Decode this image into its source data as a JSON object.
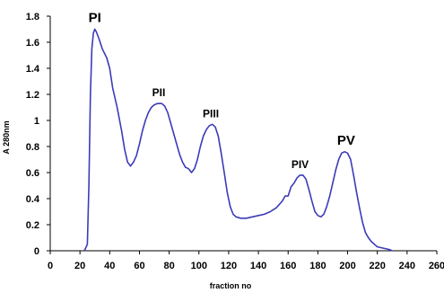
{
  "chart_data": {
    "type": "line",
    "xlabel": "fraction no",
    "ylabel": "A 280nm",
    "xlim": [
      0,
      260
    ],
    "ylim": [
      0,
      1.8
    ],
    "x_ticks": [
      0,
      20,
      40,
      60,
      80,
      100,
      120,
      140,
      160,
      180,
      200,
      220,
      240,
      260
    ],
    "y_ticks": [
      0,
      0.2,
      0.4,
      0.6,
      0.8,
      1,
      1.2,
      1.4,
      1.6,
      1.8
    ],
    "grid": false,
    "legend": "none",
    "series": [
      {
        "color": "#3b3bb8",
        "x": [
          23,
          25,
          26,
          27,
          28,
          29,
          30,
          31,
          33,
          35,
          38,
          40,
          42,
          45,
          48,
          50,
          52,
          54,
          56,
          58,
          60,
          62,
          64,
          66,
          68,
          70,
          72,
          75,
          77,
          79,
          81,
          83,
          85,
          87,
          89,
          91,
          93,
          95,
          97,
          99,
          101,
          103,
          105,
          107,
          109,
          111,
          113,
          115,
          117,
          119,
          121,
          123,
          125,
          128,
          132,
          136,
          140,
          144,
          148,
          152,
          156,
          158,
          160,
          162,
          164,
          166,
          168,
          170,
          172,
          174,
          176,
          178,
          180,
          182,
          184,
          186,
          188,
          190,
          192,
          194,
          196,
          198,
          200,
          202,
          204,
          206,
          208,
          210,
          212,
          214,
          216,
          218,
          220,
          224,
          228,
          230
        ],
        "y": [
          0.0,
          0.05,
          0.5,
          1.2,
          1.55,
          1.67,
          1.7,
          1.68,
          1.62,
          1.55,
          1.48,
          1.4,
          1.25,
          1.1,
          0.92,
          0.78,
          0.68,
          0.65,
          0.68,
          0.73,
          0.82,
          0.92,
          1.0,
          1.06,
          1.1,
          1.12,
          1.13,
          1.13,
          1.11,
          1.06,
          0.98,
          0.9,
          0.82,
          0.74,
          0.68,
          0.64,
          0.63,
          0.6,
          0.63,
          0.7,
          0.8,
          0.88,
          0.93,
          0.96,
          0.97,
          0.95,
          0.88,
          0.75,
          0.6,
          0.45,
          0.34,
          0.28,
          0.26,
          0.25,
          0.25,
          0.26,
          0.27,
          0.28,
          0.3,
          0.33,
          0.38,
          0.42,
          0.42,
          0.49,
          0.52,
          0.56,
          0.58,
          0.58,
          0.55,
          0.47,
          0.38,
          0.3,
          0.27,
          0.26,
          0.28,
          0.34,
          0.42,
          0.52,
          0.62,
          0.7,
          0.75,
          0.76,
          0.75,
          0.7,
          0.58,
          0.45,
          0.33,
          0.22,
          0.14,
          0.1,
          0.07,
          0.05,
          0.03,
          0.02,
          0.01,
          0.0
        ]
      }
    ],
    "annotations": [
      {
        "text": "PI",
        "x": 30,
        "y": 1.7,
        "size": "large"
      },
      {
        "text": "PII",
        "x": 73,
        "y": 1.13,
        "size": "small"
      },
      {
        "text": "PIII",
        "x": 108,
        "y": 0.97,
        "size": "small"
      },
      {
        "text": "PIV",
        "x": 168,
        "y": 0.58,
        "size": "small"
      },
      {
        "text": "PV",
        "x": 199,
        "y": 0.76,
        "size": "large"
      }
    ]
  }
}
